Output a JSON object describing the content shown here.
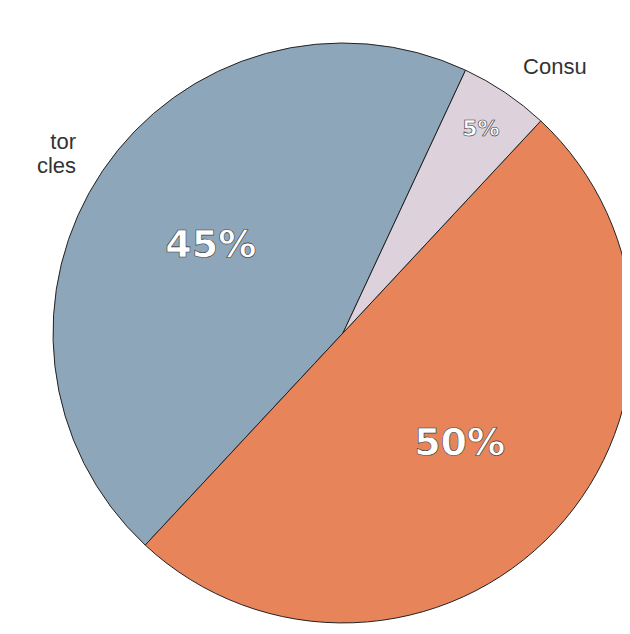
{
  "chart_data": {
    "type": "pie",
    "categories": [
      "tor\ncles",
      null,
      "Consu"
    ],
    "values": [
      45,
      50,
      5
    ],
    "value_labels": [
      "45%",
      "50%",
      "5%"
    ],
    "data_labels": true,
    "colors": [
      "#8ea6ba",
      "#e8845a",
      "#ddd2dc"
    ]
  }
}
